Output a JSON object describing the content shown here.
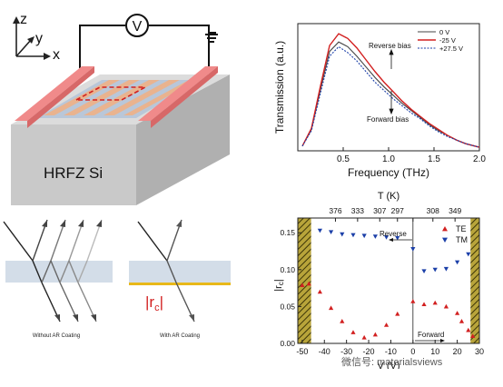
{
  "device": {
    "axes": {
      "z": "z",
      "y": "y",
      "x": "x"
    },
    "voltmeter": "V",
    "substrate_label": "HRFZ Si"
  },
  "ray_diagram": {
    "left_caption": "Without AR Coating",
    "right_caption": "With AR Coating",
    "coefficient_label": "|r",
    "coefficient_sub": "c",
    "coefficient_close": "|"
  },
  "watermark": "微信号: materialsviews",
  "colors": {
    "red": "#d22020",
    "blue": "#1b3fa8",
    "substrate_blue": "#d3dde8",
    "electrode_red": "#f08a8a",
    "hatch": "#8a7d2a"
  },
  "chart_data": [
    {
      "type": "line",
      "xlabel": "Frequency (THz)",
      "ylabel": "Transmission (a.u.)",
      "xlim": [
        0,
        2.0
      ],
      "xticks": [
        "0.5",
        "1.0",
        "1.5",
        "2.0"
      ],
      "legend_position": "top-right",
      "annotations": [
        "Reverse bias",
        "Forward bias"
      ],
      "x": [
        0.05,
        0.15,
        0.25,
        0.35,
        0.45,
        0.55,
        0.65,
        0.75,
        0.85,
        0.95,
        1.05,
        1.15,
        1.25,
        1.35,
        1.45,
        1.55,
        1.65,
        1.75,
        1.85,
        1.95,
        2.0
      ],
      "series": [
        {
          "name": "0 V",
          "values": [
            0.04,
            0.18,
            0.52,
            0.84,
            0.92,
            0.88,
            0.8,
            0.71,
            0.62,
            0.54,
            0.47,
            0.4,
            0.34,
            0.28,
            0.22,
            0.17,
            0.13,
            0.09,
            0.06,
            0.04,
            0.03
          ]
        },
        {
          "name": "-25 V",
          "values": [
            0.04,
            0.19,
            0.55,
            0.89,
            0.99,
            0.95,
            0.87,
            0.77,
            0.67,
            0.58,
            0.5,
            0.42,
            0.35,
            0.29,
            0.23,
            0.18,
            0.13,
            0.09,
            0.06,
            0.04,
            0.03
          ]
        },
        {
          "name": "+27.5 V",
          "values": [
            0.04,
            0.17,
            0.49,
            0.8,
            0.88,
            0.83,
            0.76,
            0.67,
            0.58,
            0.51,
            0.44,
            0.38,
            0.32,
            0.27,
            0.21,
            0.16,
            0.12,
            0.09,
            0.06,
            0.04,
            0.03
          ]
        }
      ]
    },
    {
      "type": "scatter",
      "xlabel": "V (V)",
      "ylabel": "|r",
      "ylabel_sub": "c",
      "top_xlabel": "T (K)",
      "xlim": [
        -52,
        30
      ],
      "ylim": [
        0,
        0.17
      ],
      "xticks": [
        "-50",
        "-40",
        "-30",
        "-20",
        "-10",
        "0",
        "10",
        "20",
        "30"
      ],
      "yticks": [
        "0.00",
        "0.05",
        "0.10",
        "0.15"
      ],
      "top_ticks": [
        {
          "x": -35,
          "label": "376"
        },
        {
          "x": -25,
          "label": "333"
        },
        {
          "x": -15,
          "label": "307"
        },
        {
          "x": -7,
          "label": "297"
        },
        {
          "x": 0,
          "label": ""
        },
        {
          "x": 9,
          "label": "308"
        },
        {
          "x": 19,
          "label": "349"
        }
      ],
      "annotations": [
        "Reverse",
        "Forward"
      ],
      "legend_position": "top-right",
      "series": [
        {
          "name": "TE",
          "marker": "triangle-up",
          "color": "#d22020",
          "x": [
            -50,
            -47,
            -42,
            -37,
            -32,
            -27,
            -22,
            -17,
            -12,
            -7,
            0,
            5,
            10,
            15,
            20,
            22,
            25,
            27
          ],
          "y": [
            0.079,
            0.081,
            0.07,
            0.048,
            0.03,
            0.015,
            0.008,
            0.012,
            0.025,
            0.04,
            0.057,
            0.053,
            0.055,
            0.05,
            0.041,
            0.03,
            0.018,
            0.01
          ]
        },
        {
          "name": "TM",
          "marker": "triangle-down",
          "color": "#1b3fa8",
          "x": [
            -42,
            -37,
            -32,
            -27,
            -22,
            -17,
            -12,
            -7,
            0,
            5,
            10,
            15,
            20,
            25
          ],
          "y": [
            0.153,
            0.151,
            0.148,
            0.147,
            0.146,
            0.145,
            0.144,
            0.143,
            0.128,
            0.098,
            0.1,
            0.101,
            0.11,
            0.121
          ]
        }
      ]
    }
  ]
}
